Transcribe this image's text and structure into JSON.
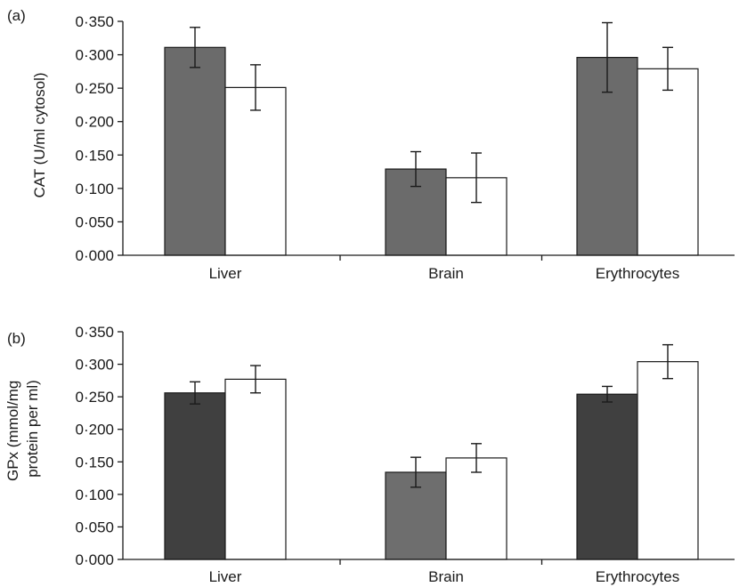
{
  "chart_data": [
    {
      "type": "bar",
      "panel_label": "(a)",
      "ylabel": "CAT (U/ml cytosol)",
      "categories": [
        "Liver",
        "Brain",
        "Erythrocytes"
      ],
      "ylim": [
        0,
        0.35
      ],
      "yticks": [
        "0·000",
        "0·050",
        "0·100",
        "0·150",
        "0·200",
        "0·250",
        "0·300",
        "0·350"
      ],
      "series": [
        {
          "color": "#6b6b6b",
          "values": [
            0.311,
            0.129,
            0.296
          ],
          "errors": [
            0.03,
            0.026,
            0.052
          ]
        },
        {
          "color": "#ffffff",
          "values": [
            0.251,
            0.116,
            0.279
          ],
          "errors": [
            0.034,
            0.037,
            0.032
          ]
        }
      ]
    },
    {
      "type": "bar",
      "panel_label": "(b)",
      "ylabel": "GPx (mmol/mg protein per ml)",
      "ylabel_lines": [
        "GPx (mmol/mg",
        "protein per ml)"
      ],
      "categories": [
        "Liver",
        "Brain",
        "Erythrocytes"
      ],
      "ylim": [
        0,
        0.35
      ],
      "yticks": [
        "0·000",
        "0·050",
        "0·100",
        "0·150",
        "0·200",
        "0·250",
        "0·300",
        "0·350"
      ],
      "series": [
        {
          "colors": [
            "#404040",
            "#6e6e6e",
            "#404040"
          ],
          "values": [
            0.256,
            0.134,
            0.254
          ],
          "errors": [
            0.017,
            0.023,
            0.012
          ]
        },
        {
          "color": "#ffffff",
          "values": [
            0.277,
            0.156,
            0.304
          ],
          "errors": [
            0.021,
            0.022,
            0.026
          ]
        }
      ]
    }
  ]
}
